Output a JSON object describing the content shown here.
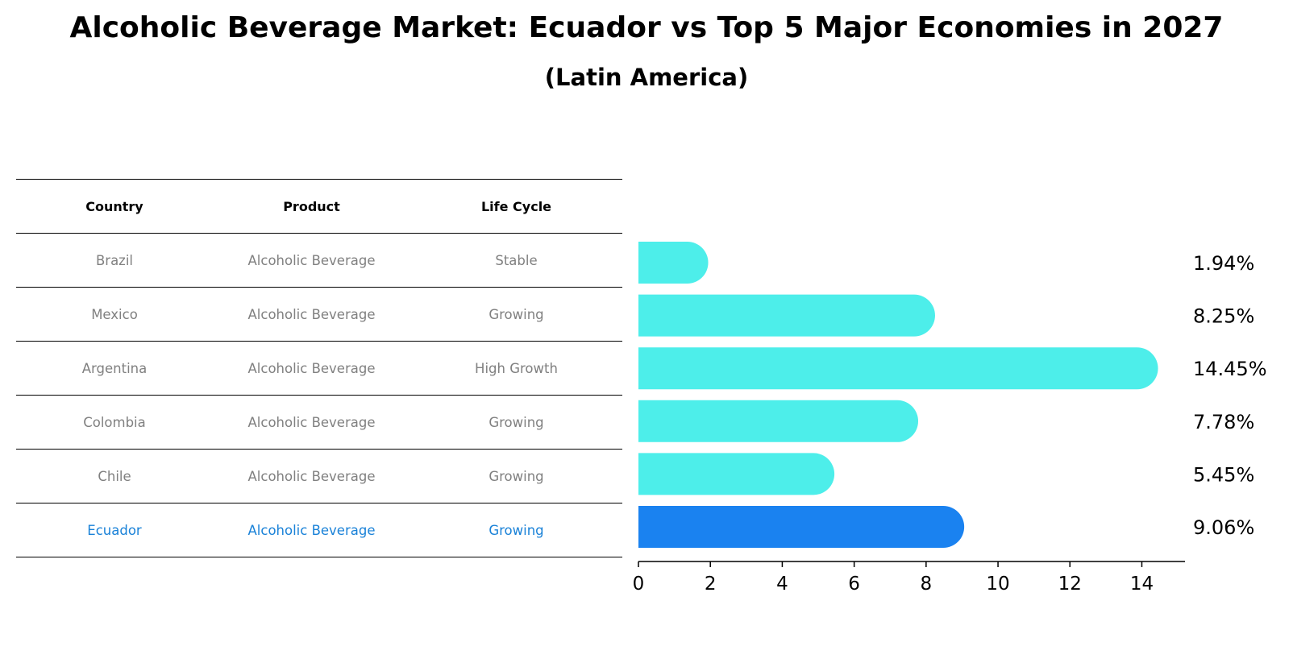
{
  "title": "Alcoholic Beverage Market: Ecuador vs Top 5 Major Economies in 2027",
  "subtitle": "(Latin America)",
  "table": {
    "headers": [
      "Country",
      "Product",
      "Life Cycle"
    ],
    "rows": [
      {
        "country": "Brazil",
        "product": "Alcoholic Beverage",
        "life_cycle": "Stable",
        "highlight": false
      },
      {
        "country": "Mexico",
        "product": "Alcoholic Beverage",
        "life_cycle": "Growing",
        "highlight": false
      },
      {
        "country": "Argentina",
        "product": "Alcoholic Beverage",
        "life_cycle": "High Growth",
        "highlight": false
      },
      {
        "country": "Colombia",
        "product": "Alcoholic Beverage",
        "life_cycle": "Growing",
        "highlight": false
      },
      {
        "country": "Chile",
        "product": "Alcoholic Beverage",
        "life_cycle": "Growing",
        "highlight": false
      },
      {
        "country": "Ecuador",
        "product": "Alcoholic Beverage",
        "life_cycle": "Growing",
        "highlight": true
      }
    ]
  },
  "chart_data": {
    "type": "bar",
    "orientation": "horizontal",
    "categories": [
      "Brazil",
      "Mexico",
      "Argentina",
      "Colombia",
      "Chile",
      "Ecuador"
    ],
    "values": [
      1.94,
      8.25,
      14.45,
      7.78,
      5.45,
      9.06
    ],
    "value_labels": [
      "1.94%",
      "8.25%",
      "14.45%",
      "7.78%",
      "5.45%",
      "9.06%"
    ],
    "highlight_index": 5,
    "xlim": [
      0,
      15.2
    ],
    "xticks": [
      0,
      2,
      4,
      6,
      8,
      10,
      12,
      14
    ],
    "colors": {
      "default": "#4deeea",
      "highlight": "#1a82f0"
    },
    "grid": false
  }
}
